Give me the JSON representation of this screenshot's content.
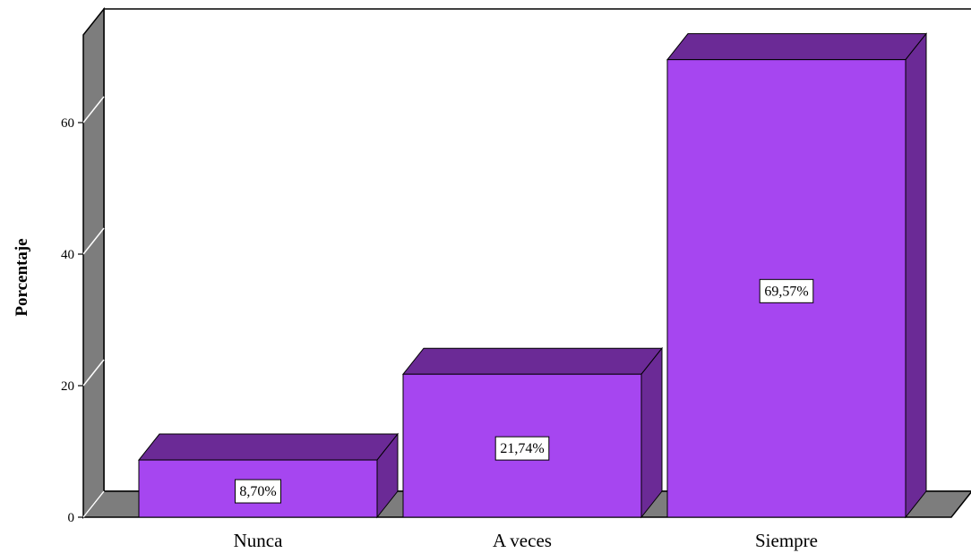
{
  "chart_data": {
    "type": "bar",
    "style": "3d",
    "categories": [
      "Nunca",
      "A veces",
      "Siempre"
    ],
    "values": [
      8.7,
      21.74,
      69.57
    ],
    "data_labels": [
      "8,70%",
      "21,74%",
      "69,57%"
    ],
    "title": "",
    "xlabel": "",
    "ylabel": "Porcentaje",
    "ylim": [
      0,
      70
    ],
    "yticks": [
      0,
      20,
      40,
      60
    ],
    "grid": false,
    "legend": "none",
    "colors": {
      "bar_front": "#a646f0",
      "bar_top": "#6b2a96",
      "bar_side": "#6b2a96",
      "wall": "#7d7d7d",
      "floor": "#7d7d7d"
    }
  }
}
